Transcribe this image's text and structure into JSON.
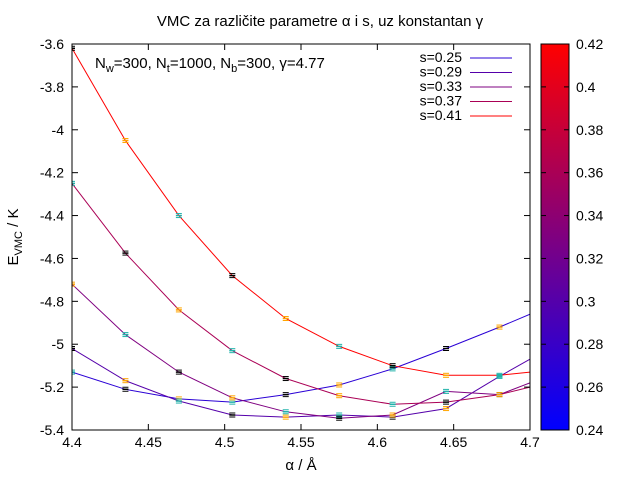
{
  "chart_data": {
    "type": "line",
    "title": "VMC za različite parametre α i s, uz konstantan γ",
    "xlabel": "α / Å",
    "ylabel": {
      "main": "E",
      "sub": "VMC",
      "rest": " / K"
    },
    "annotation": {
      "parts": [
        {
          "t": "N"
        },
        {
          "t": "w",
          "sub": true
        },
        {
          "t": "=300, N"
        },
        {
          "t": "t",
          "sub": true
        },
        {
          "t": "=1000, N"
        },
        {
          "t": "b",
          "sub": true
        },
        {
          "t": "=300, γ=4.77"
        }
      ]
    },
    "xlim": [
      4.4,
      4.7
    ],
    "ylim": [
      -5.4,
      -3.6
    ],
    "xticks": [
      "4.4",
      "4.45",
      "4.5",
      "4.55",
      "4.6",
      "4.65",
      "4.7"
    ],
    "yticks": [
      "-3.6",
      "-3.8",
      "-4",
      "-4.2",
      "-4.4",
      "-4.6",
      "-4.8",
      "-5",
      "-5.2",
      "-5.4"
    ],
    "colorbar": {
      "range": [
        0.24,
        0.42
      ],
      "ticks": [
        "0.24",
        "0.26",
        "0.28",
        "0.3",
        "0.32",
        "0.34",
        "0.36",
        "0.38",
        "0.4",
        "0.42"
      ],
      "color_low": "#0000ff",
      "color_high": "#ff0000"
    },
    "grid": false,
    "legend_position": "top-right",
    "x": [
      4.4,
      4.435,
      4.47,
      4.505,
      4.54,
      4.575,
      4.61,
      4.645,
      4.68,
      4.7
    ],
    "series": [
      {
        "name": "s=0.25",
        "color": "#2a00d5",
        "values": [
          -5.13,
          -5.21,
          -5.255,
          -5.27,
          -5.235,
          -5.19,
          -5.115,
          -5.02,
          -4.92,
          -4.86
        ]
      },
      {
        "name": "s=0.29",
        "color": "#5500aa",
        "values": [
          -5.02,
          -5.17,
          -5.265,
          -5.33,
          -5.34,
          -5.33,
          -5.34,
          -5.3,
          -5.15,
          -5.07
        ]
      },
      {
        "name": "s=0.33",
        "color": "#7f0080",
        "values": [
          -4.72,
          -4.955,
          -5.13,
          -5.25,
          -5.315,
          -5.345,
          -5.33,
          -5.22,
          -5.235,
          -5.18
        ]
      },
      {
        "name": "s=0.37",
        "color": "#aa0055",
        "values": [
          -4.25,
          -4.575,
          -4.84,
          -5.03,
          -5.16,
          -5.24,
          -5.28,
          -5.27,
          -5.235,
          -5.2
        ]
      },
      {
        "name": "s=0.41",
        "color": "#ff0000",
        "values": [
          -3.62,
          -4.05,
          -4.4,
          -4.68,
          -4.88,
          -5.01,
          -5.1,
          -5.145,
          -5.145,
          -5.13
        ]
      }
    ],
    "errorbar_colors": [
      "#20b2aa",
      "#000000",
      "#ffa500"
    ]
  }
}
